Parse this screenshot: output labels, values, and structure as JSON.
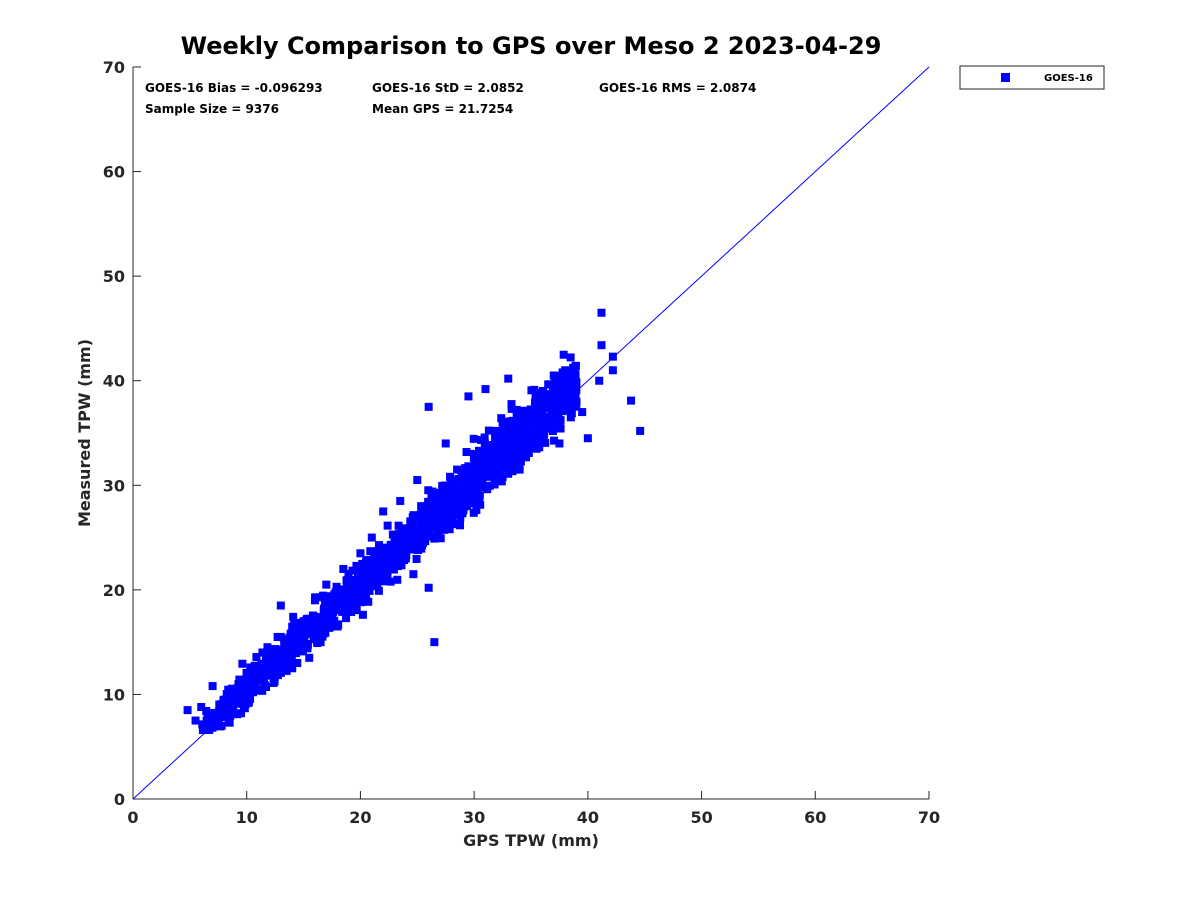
{
  "chart_data": {
    "type": "scatter",
    "title": "Weekly Comparison to GPS over Meso 2 2023-04-29",
    "xlabel": "GPS TPW (mm)",
    "ylabel": "Measured TPW (mm)",
    "xlim": [
      0,
      70
    ],
    "ylim": [
      0,
      70
    ],
    "xticks": [
      "0",
      "10",
      "20",
      "30",
      "40",
      "50",
      "60",
      "70"
    ],
    "yticks": [
      "0",
      "10",
      "20",
      "30",
      "40",
      "50",
      "60",
      "70"
    ],
    "grid": false,
    "legend_position": "outside-top-right",
    "stats": {
      "bias": "GOES-16 Bias = -0.096293",
      "std": "GOES-16 StD = 2.0852",
      "rms": "GOES-16 RMS = 2.0874",
      "sample_size": "Sample Size = 9376",
      "mean_gps": "Mean GPS = 21.7254"
    },
    "reference_line": {
      "name": "1:1 line",
      "from": [
        0,
        0
      ],
      "to": [
        70,
        70
      ],
      "color": "#0000ff"
    },
    "series": [
      {
        "name": "GOES-16",
        "color": "#0000ff",
        "marker": "square",
        "sample_points": [
          [
            4.8,
            8.5
          ],
          [
            5.5,
            7.5
          ],
          [
            6.0,
            8.8
          ],
          [
            6.5,
            7.2
          ],
          [
            7.0,
            10.8
          ],
          [
            7.2,
            8.0
          ],
          [
            7.8,
            7.0
          ],
          [
            8.0,
            9.5
          ],
          [
            8.5,
            7.3
          ],
          [
            9.0,
            10.2
          ],
          [
            9.5,
            8.2
          ],
          [
            10.0,
            11.5
          ],
          [
            10.5,
            12.5
          ],
          [
            11.0,
            10.5
          ],
          [
            11.5,
            14.0
          ],
          [
            12.0,
            11.8
          ],
          [
            12.5,
            13.5
          ],
          [
            13.0,
            15.5
          ],
          [
            13.0,
            18.5
          ],
          [
            14.0,
            12.5
          ],
          [
            14.5,
            15.8
          ],
          [
            15.0,
            17.0
          ],
          [
            15.5,
            13.5
          ],
          [
            16.0,
            19.0
          ],
          [
            16.5,
            15.0
          ],
          [
            17.0,
            20.5
          ],
          [
            17.5,
            17.5
          ],
          [
            18.0,
            16.5
          ],
          [
            18.5,
            22.0
          ],
          [
            19.0,
            18.5
          ],
          [
            19.5,
            20.0
          ],
          [
            20.0,
            23.5
          ],
          [
            20.5,
            19.0
          ],
          [
            21.0,
            25.0
          ],
          [
            21.5,
            21.5
          ],
          [
            22.0,
            27.5
          ],
          [
            22.5,
            22.0
          ],
          [
            23.0,
            24.5
          ],
          [
            23.5,
            28.5
          ],
          [
            24.0,
            23.0
          ],
          [
            24.5,
            26.0
          ],
          [
            25.0,
            30.5
          ],
          [
            25.5,
            24.5
          ],
          [
            26.0,
            37.5
          ],
          [
            26.0,
            20.2
          ],
          [
            26.5,
            15.0
          ],
          [
            27.0,
            29.0
          ],
          [
            27.5,
            34.0
          ],
          [
            28.0,
            26.5
          ],
          [
            28.5,
            31.5
          ],
          [
            29.0,
            27.5
          ],
          [
            29.5,
            38.5
          ],
          [
            30.0,
            33.0
          ],
          [
            30.5,
            29.0
          ],
          [
            31.0,
            39.2
          ],
          [
            31.5,
            32.0
          ],
          [
            32.0,
            30.5
          ],
          [
            32.5,
            36.0
          ],
          [
            33.0,
            40.2
          ],
          [
            33.5,
            33.0
          ],
          [
            34.0,
            31.5
          ],
          [
            34.5,
            37.0
          ],
          [
            35.0,
            34.0
          ],
          [
            35.5,
            33.5
          ],
          [
            36.0,
            38.5
          ],
          [
            36.5,
            35.5
          ],
          [
            37.0,
            40.5
          ],
          [
            37.5,
            34.0
          ],
          [
            38.0,
            41.0
          ],
          [
            38.5,
            36.5
          ],
          [
            39.0,
            38.0
          ],
          [
            39.5,
            37.0
          ],
          [
            40.0,
            34.5
          ],
          [
            41.0,
            40.0
          ],
          [
            41.2,
            46.5
          ],
          [
            41.2,
            43.4
          ],
          [
            42.2,
            42.3
          ],
          [
            42.2,
            41.0
          ],
          [
            43.8,
            38.1
          ],
          [
            44.6,
            35.2
          ]
        ],
        "sample_count": 9376
      }
    ]
  }
}
